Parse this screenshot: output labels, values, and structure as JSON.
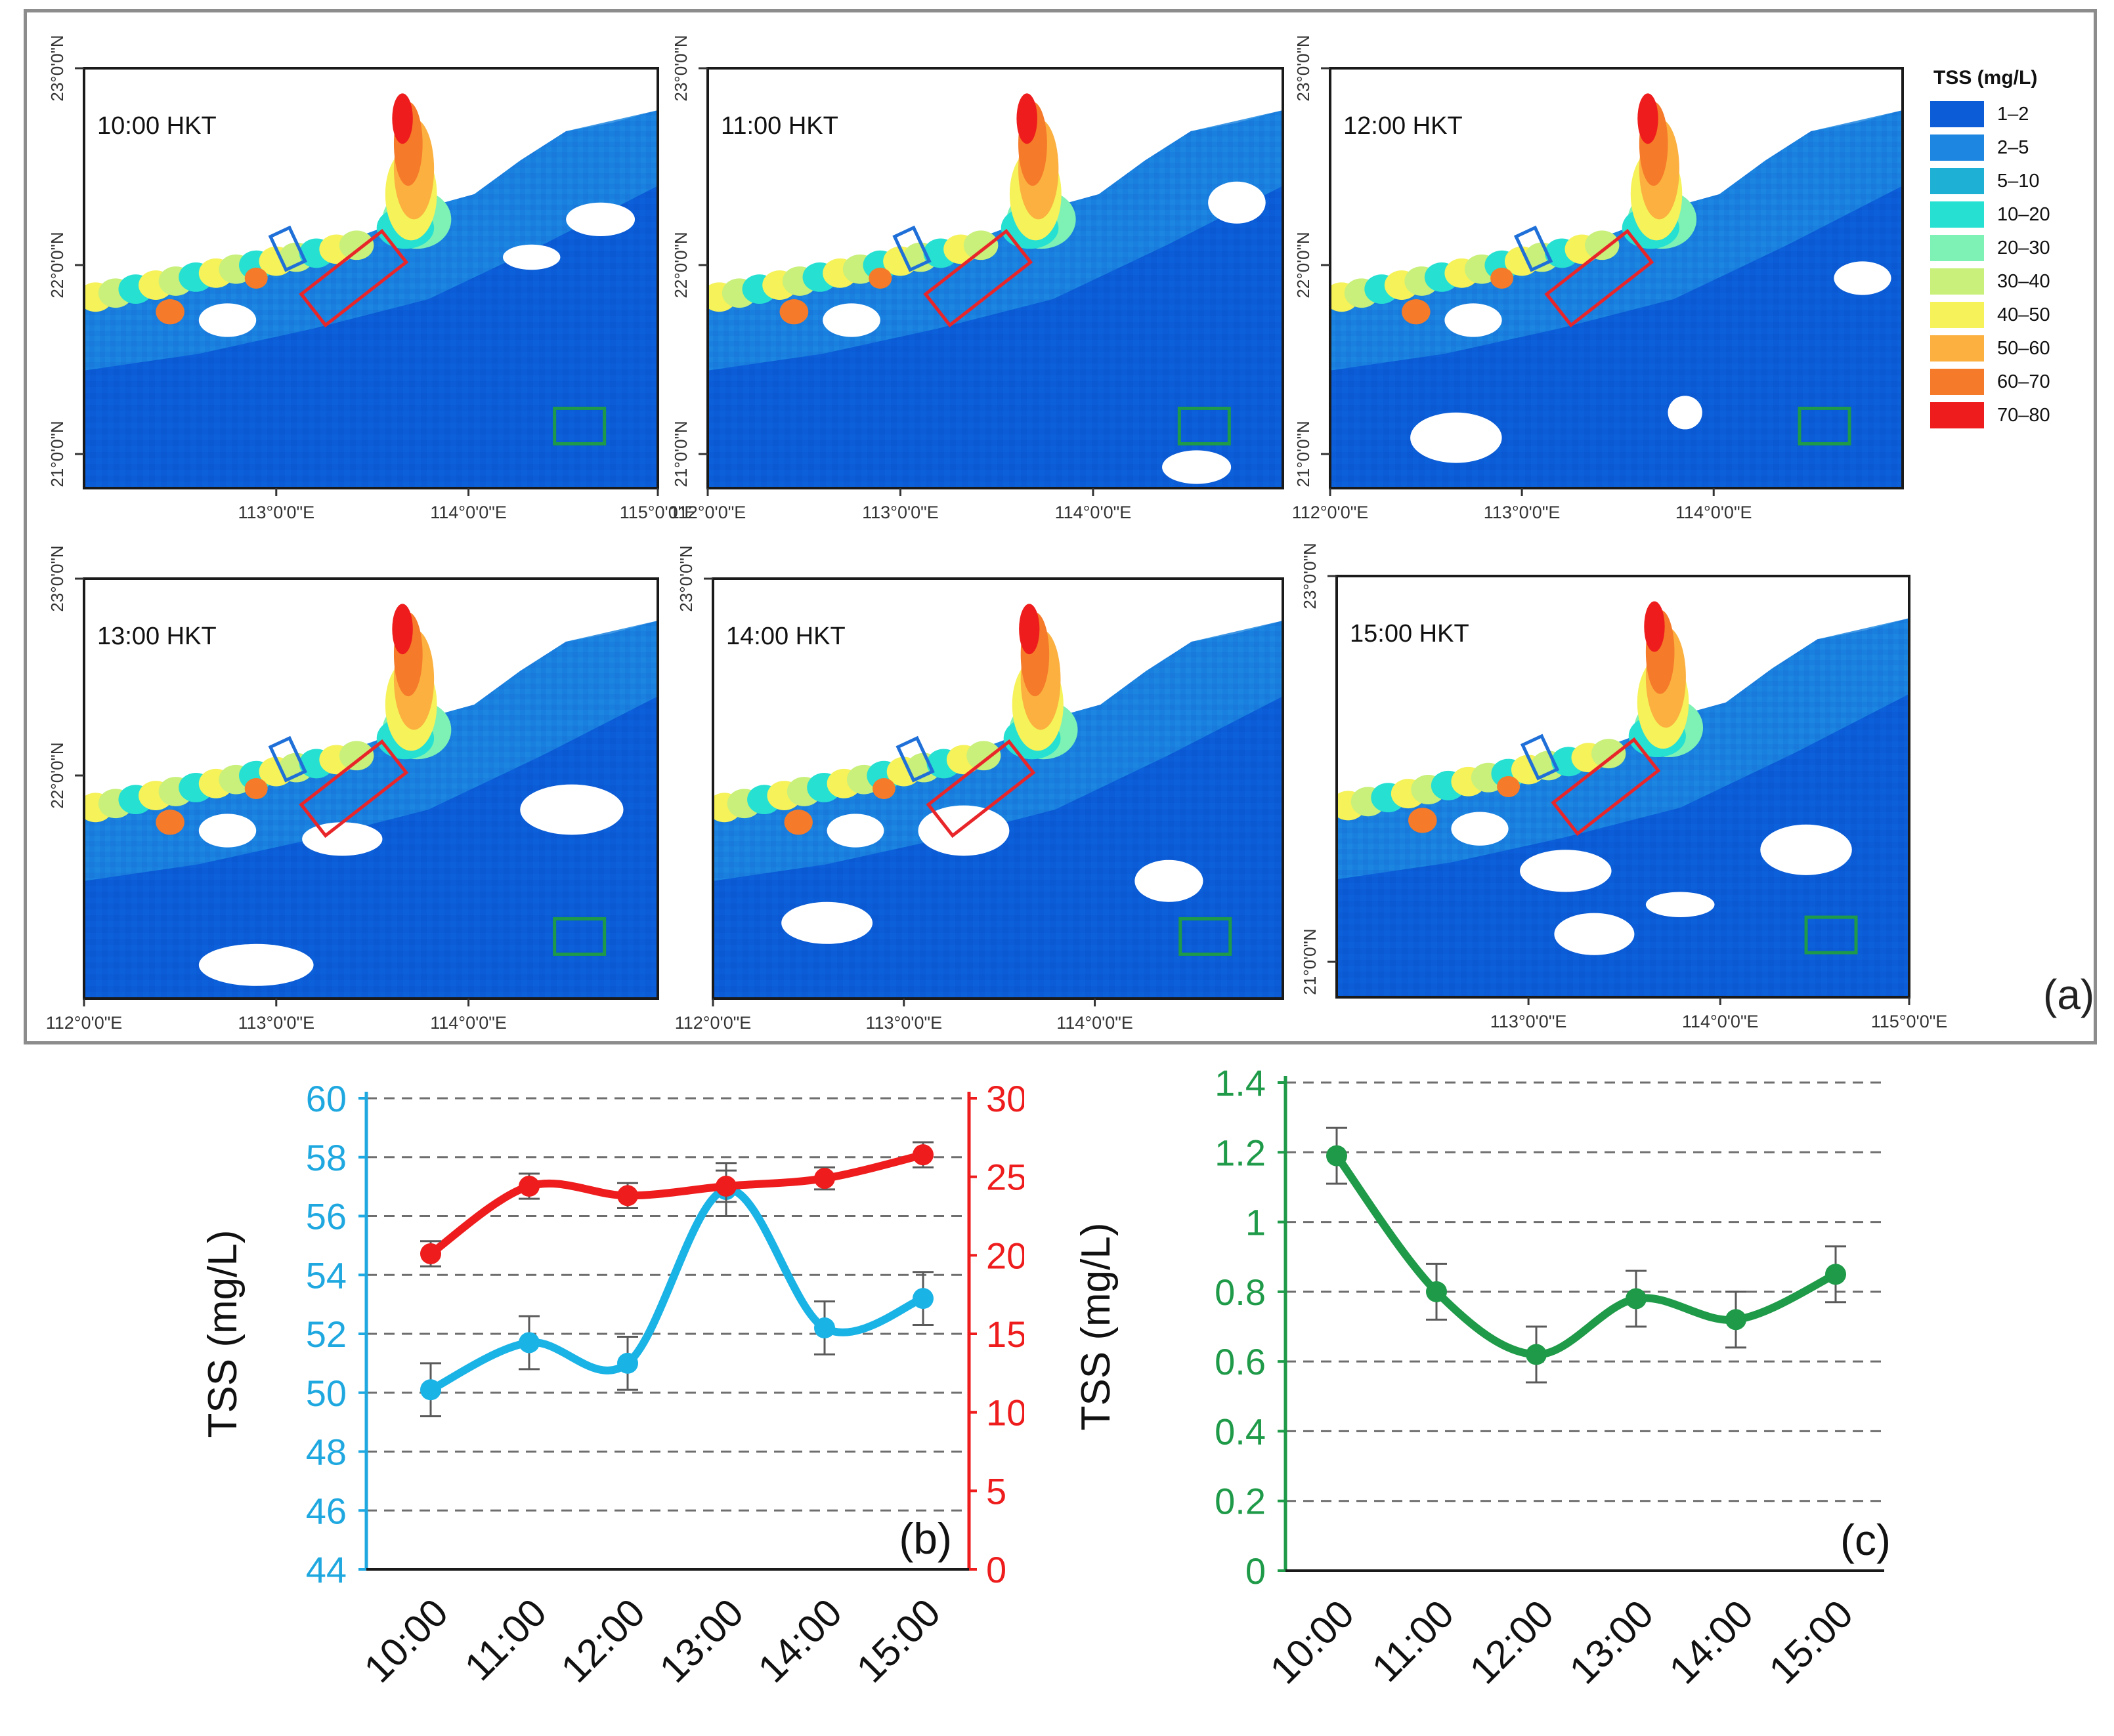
{
  "panel_a": {
    "label": "(a)",
    "legend": {
      "title": "TSS (mg/L)",
      "classes": [
        {
          "label": "1–2",
          "color": "#0b5cd6"
        },
        {
          "label": "2–5",
          "color": "#1c86e0"
        },
        {
          "label": "5–10",
          "color": "#1fb0d6"
        },
        {
          "label": "10–20",
          "color": "#26e0d2"
        },
        {
          "label": "20–30",
          "color": "#7df2b4"
        },
        {
          "label": "30–40",
          "color": "#c8f07a"
        },
        {
          "label": "40–50",
          "color": "#f5f25a"
        },
        {
          "label": "50–60",
          "color": "#fbb040"
        },
        {
          "label": "60–70",
          "color": "#f57a2a"
        },
        {
          "label": "70–80",
          "color": "#ee1c1c"
        }
      ]
    },
    "maps": [
      {
        "time": "10:00 HKT"
      },
      {
        "time": "11:00 HKT"
      },
      {
        "time": "12:00 HKT"
      },
      {
        "time": "13:00 HKT"
      },
      {
        "time": "14:00 HKT"
      },
      {
        "time": "15:00 HKT"
      }
    ],
    "lat_labels": [
      "23°0'0\"N",
      "22°0'0\"N",
      "21°0'0\"N"
    ],
    "lon_labels": [
      "112°0'0\"E",
      "113°0'0\"E",
      "114°0'0\"E",
      "115°0'0\"E"
    ],
    "box_colors": {
      "blue": "#1f6fd8",
      "red": "#e8262a",
      "green": "#1e9a48"
    }
  },
  "chart_data": [
    {
      "panel": "(b)",
      "type": "line",
      "categories": [
        "10:00",
        "11:00",
        "12:00",
        "13:00",
        "14:00",
        "15:00"
      ],
      "ylabel": "TSS (mg/L)",
      "y_left": {
        "range": [
          44,
          60
        ],
        "ticks": [
          "44",
          "46",
          "48",
          "50",
          "52",
          "54",
          "56",
          "58",
          "60"
        ],
        "color": "#1fa8e0"
      },
      "y_right": {
        "range": [
          0,
          30
        ],
        "ticks": [
          "0",
          "5",
          "10",
          "15",
          "20",
          "25",
          "30"
        ],
        "color": "#ee1c1c"
      },
      "grid": true,
      "series": [
        {
          "axis": "left",
          "color": "#1ab3e6",
          "values": [
            50.1,
            51.7,
            51.0,
            56.9,
            52.2,
            53.2
          ],
          "errors": [
            0.9,
            0.9,
            0.9,
            0.9,
            0.9,
            0.9
          ]
        },
        {
          "axis": "right",
          "color": "#ee1c1c",
          "values": [
            20.1,
            24.4,
            23.8,
            24.4,
            24.9,
            26.4
          ],
          "errors": [
            0.8,
            0.8,
            0.8,
            1.0,
            0.7,
            0.8
          ]
        }
      ]
    },
    {
      "panel": "(c)",
      "type": "line",
      "categories": [
        "10:00",
        "11:00",
        "12:00",
        "13:00",
        "14:00",
        "15:00"
      ],
      "ylabel": "TSS (mg/L)",
      "y_left": {
        "range": [
          0,
          1.4
        ],
        "ticks": [
          "0",
          "0.2",
          "0.4",
          "0.6",
          "0.8",
          "1",
          "1.2",
          "1.4"
        ],
        "color": "#1e9a48"
      },
      "grid": true,
      "series": [
        {
          "axis": "left",
          "color": "#1e9a48",
          "values": [
            1.19,
            0.8,
            0.62,
            0.78,
            0.72,
            0.85
          ],
          "errors": [
            0.08,
            0.08,
            0.08,
            0.08,
            0.08,
            0.08
          ]
        }
      ]
    }
  ]
}
